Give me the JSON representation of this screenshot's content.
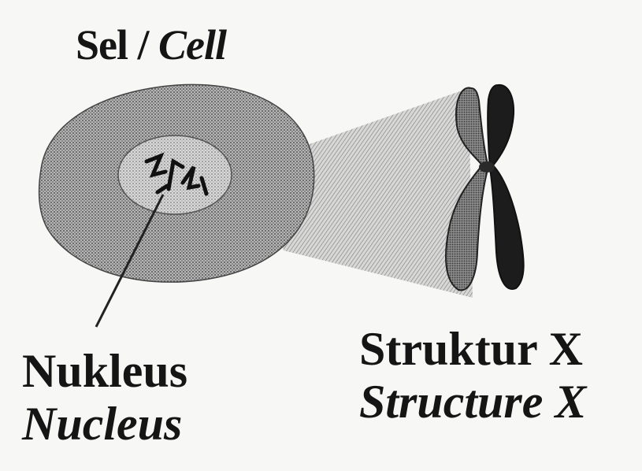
{
  "cell_label": {
    "malay": "Sel",
    "separator": " / ",
    "english": "Cell"
  },
  "nucleus_label": {
    "malay": "Nukleus",
    "english": "Nucleus"
  },
  "structure_label": {
    "malay": "Struktur X",
    "english": "Structure X"
  },
  "colors": {
    "cell_fill": "#9a9a9a",
    "nucleus_fill": "#c8c8c8",
    "chromosome_dark": "#1a1a1a",
    "chromosome_light": "#6a6a6a",
    "ink": "#111111"
  }
}
